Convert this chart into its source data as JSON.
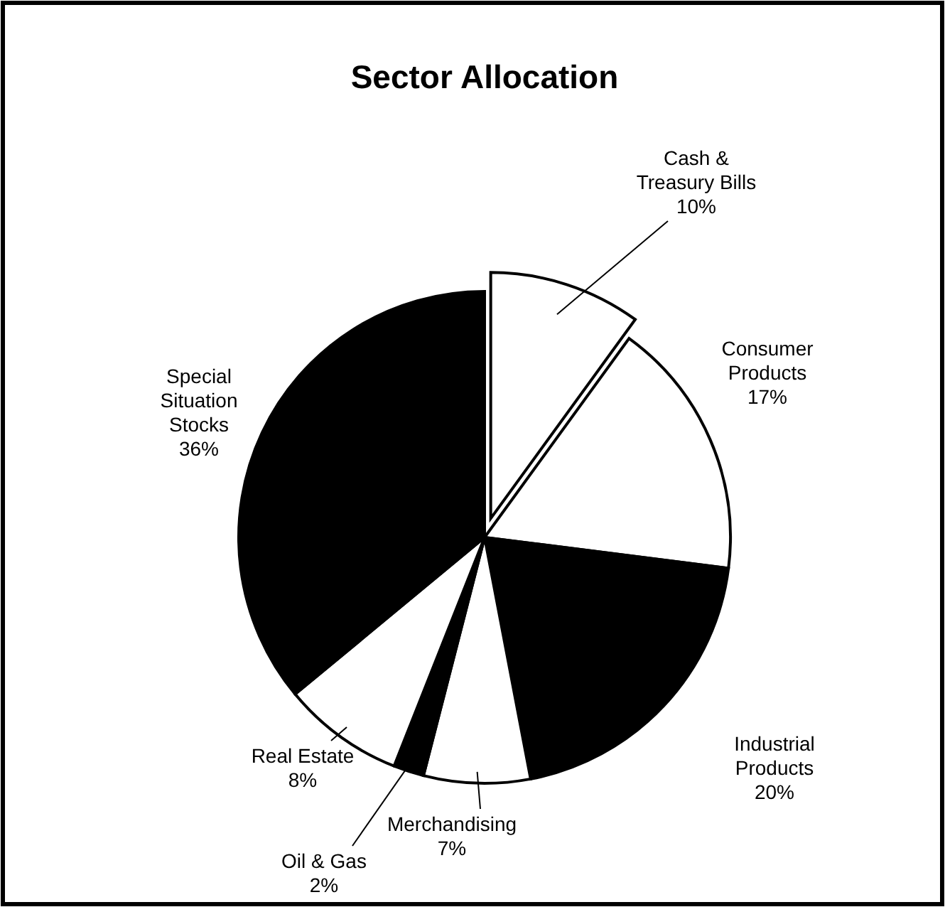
{
  "chart_data": {
    "type": "pie",
    "title": "Sector Allocation",
    "categories": [
      "Cash &\nTreasury Bills",
      "Consumer\nProducts",
      "Industrial\nProducts",
      "Merchandising",
      "Oil & Gas",
      "Real Estate",
      "Special\nSituation\nStocks"
    ],
    "values": [
      10,
      17,
      20,
      7,
      2,
      8,
      36
    ],
    "value_labels": [
      "10%",
      "17%",
      "20%",
      "7%",
      "2%",
      "8%",
      "36%"
    ],
    "colors": [
      "#ffffff",
      "#ffffff",
      "#000000",
      "#ffffff",
      "#000000",
      "#ffffff",
      "#000000"
    ]
  }
}
